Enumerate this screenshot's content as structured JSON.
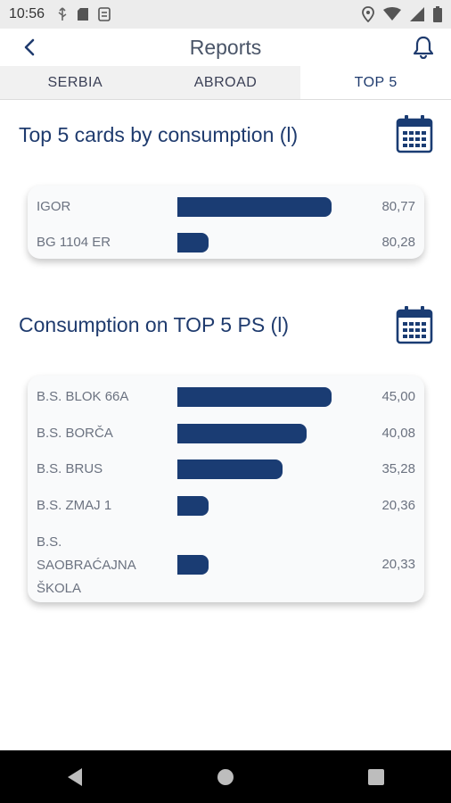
{
  "status_bar": {
    "time": "10:56"
  },
  "header": {
    "title": "Reports"
  },
  "tabs": [
    {
      "label": "SERBIA"
    },
    {
      "label": "ABROAD"
    },
    {
      "label": "TOP 5"
    }
  ],
  "section_cards": {
    "title": "Top 5 cards by consumption (l)",
    "rows": [
      {
        "label": "IGOR",
        "value": "80,77",
        "fill": 1.0
      },
      {
        "label": "BG 1104 ER",
        "value": "80,28",
        "fill": 0.2
      }
    ]
  },
  "section_ps": {
    "title": "Consumption on TOP 5 PS (l)",
    "rows": [
      {
        "label": "B.S. BLOK 66A",
        "value": "45,00",
        "fill": 1.0
      },
      {
        "label": "B.S. BORČA",
        "value": "40,08",
        "fill": 0.84
      },
      {
        "label": "B.S. BRUS",
        "value": "35,28",
        "fill": 0.68
      },
      {
        "label": "B.S. ZMAJ 1",
        "value": "20,36",
        "fill": 0.2
      },
      {
        "label": "B.S. SAOBRAĆAJNA ŠKOLA",
        "value": "20,33",
        "fill": 0.2
      }
    ]
  },
  "colors": {
    "accent": "#1a3c73",
    "text": "#1f3b6e",
    "muted": "#6b7280"
  }
}
